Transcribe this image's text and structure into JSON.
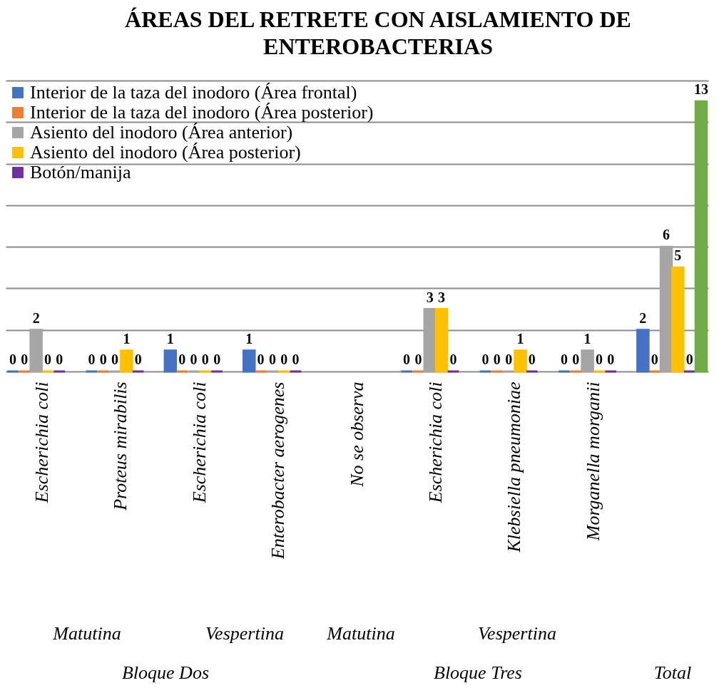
{
  "chart_data": {
    "type": "bar",
    "title": "ÁREAS DEL RETRETE CON AISLAMIENTO DE ENTEROBACTERIAS",
    "categories": [
      "Escherichia coli",
      "Proteus mirabilis",
      "Escherichia coli",
      "Enterobacter aerogenes",
      "No se observa",
      "Escherichia coli",
      "Klebsiella pneumoniae",
      "Morganella morganii",
      null
    ],
    "series": [
      {
        "name": "Interior de la taza del inodoro (Área frontal)",
        "color": "#4472c4",
        "values": [
          0,
          0,
          1,
          1,
          null,
          0,
          0,
          0,
          2
        ]
      },
      {
        "name": "Interior de la taza del inodoro (Área posterior)",
        "color": "#ed7d31",
        "values": [
          0,
          0,
          0,
          0,
          null,
          0,
          0,
          0,
          0
        ]
      },
      {
        "name": "Asiento del inodoro (Área anterior)",
        "color": "#a5a5a5",
        "values": [
          2,
          0,
          0,
          0,
          null,
          3,
          0,
          1,
          6
        ]
      },
      {
        "name": "Asiento del inodoro (Área posterior)",
        "color": "#ffc000",
        "values": [
          0,
          1,
          0,
          0,
          null,
          3,
          1,
          0,
          5
        ]
      },
      {
        "name": "Botón/manija",
        "color": "#7030a0",
        "values": [
          0,
          0,
          0,
          0,
          null,
          0,
          0,
          0,
          0
        ]
      },
      {
        "color": "#70ad47",
        "values": [
          null,
          null,
          null,
          null,
          null,
          null,
          null,
          null,
          13
        ]
      }
    ],
    "annotations": [
      "Matutina",
      "Vespertina",
      "Matutina",
      "Vespertina",
      "Bloque Dos",
      "Bloque Tres",
      "Total"
    ],
    "ylim": [
      0,
      14
    ],
    "yticks": [
      0,
      2,
      4,
      6,
      8,
      10,
      12,
      14
    ],
    "grid": true,
    "tick_labels": "x",
    "legend": "top left",
    "data_labels": true
  }
}
